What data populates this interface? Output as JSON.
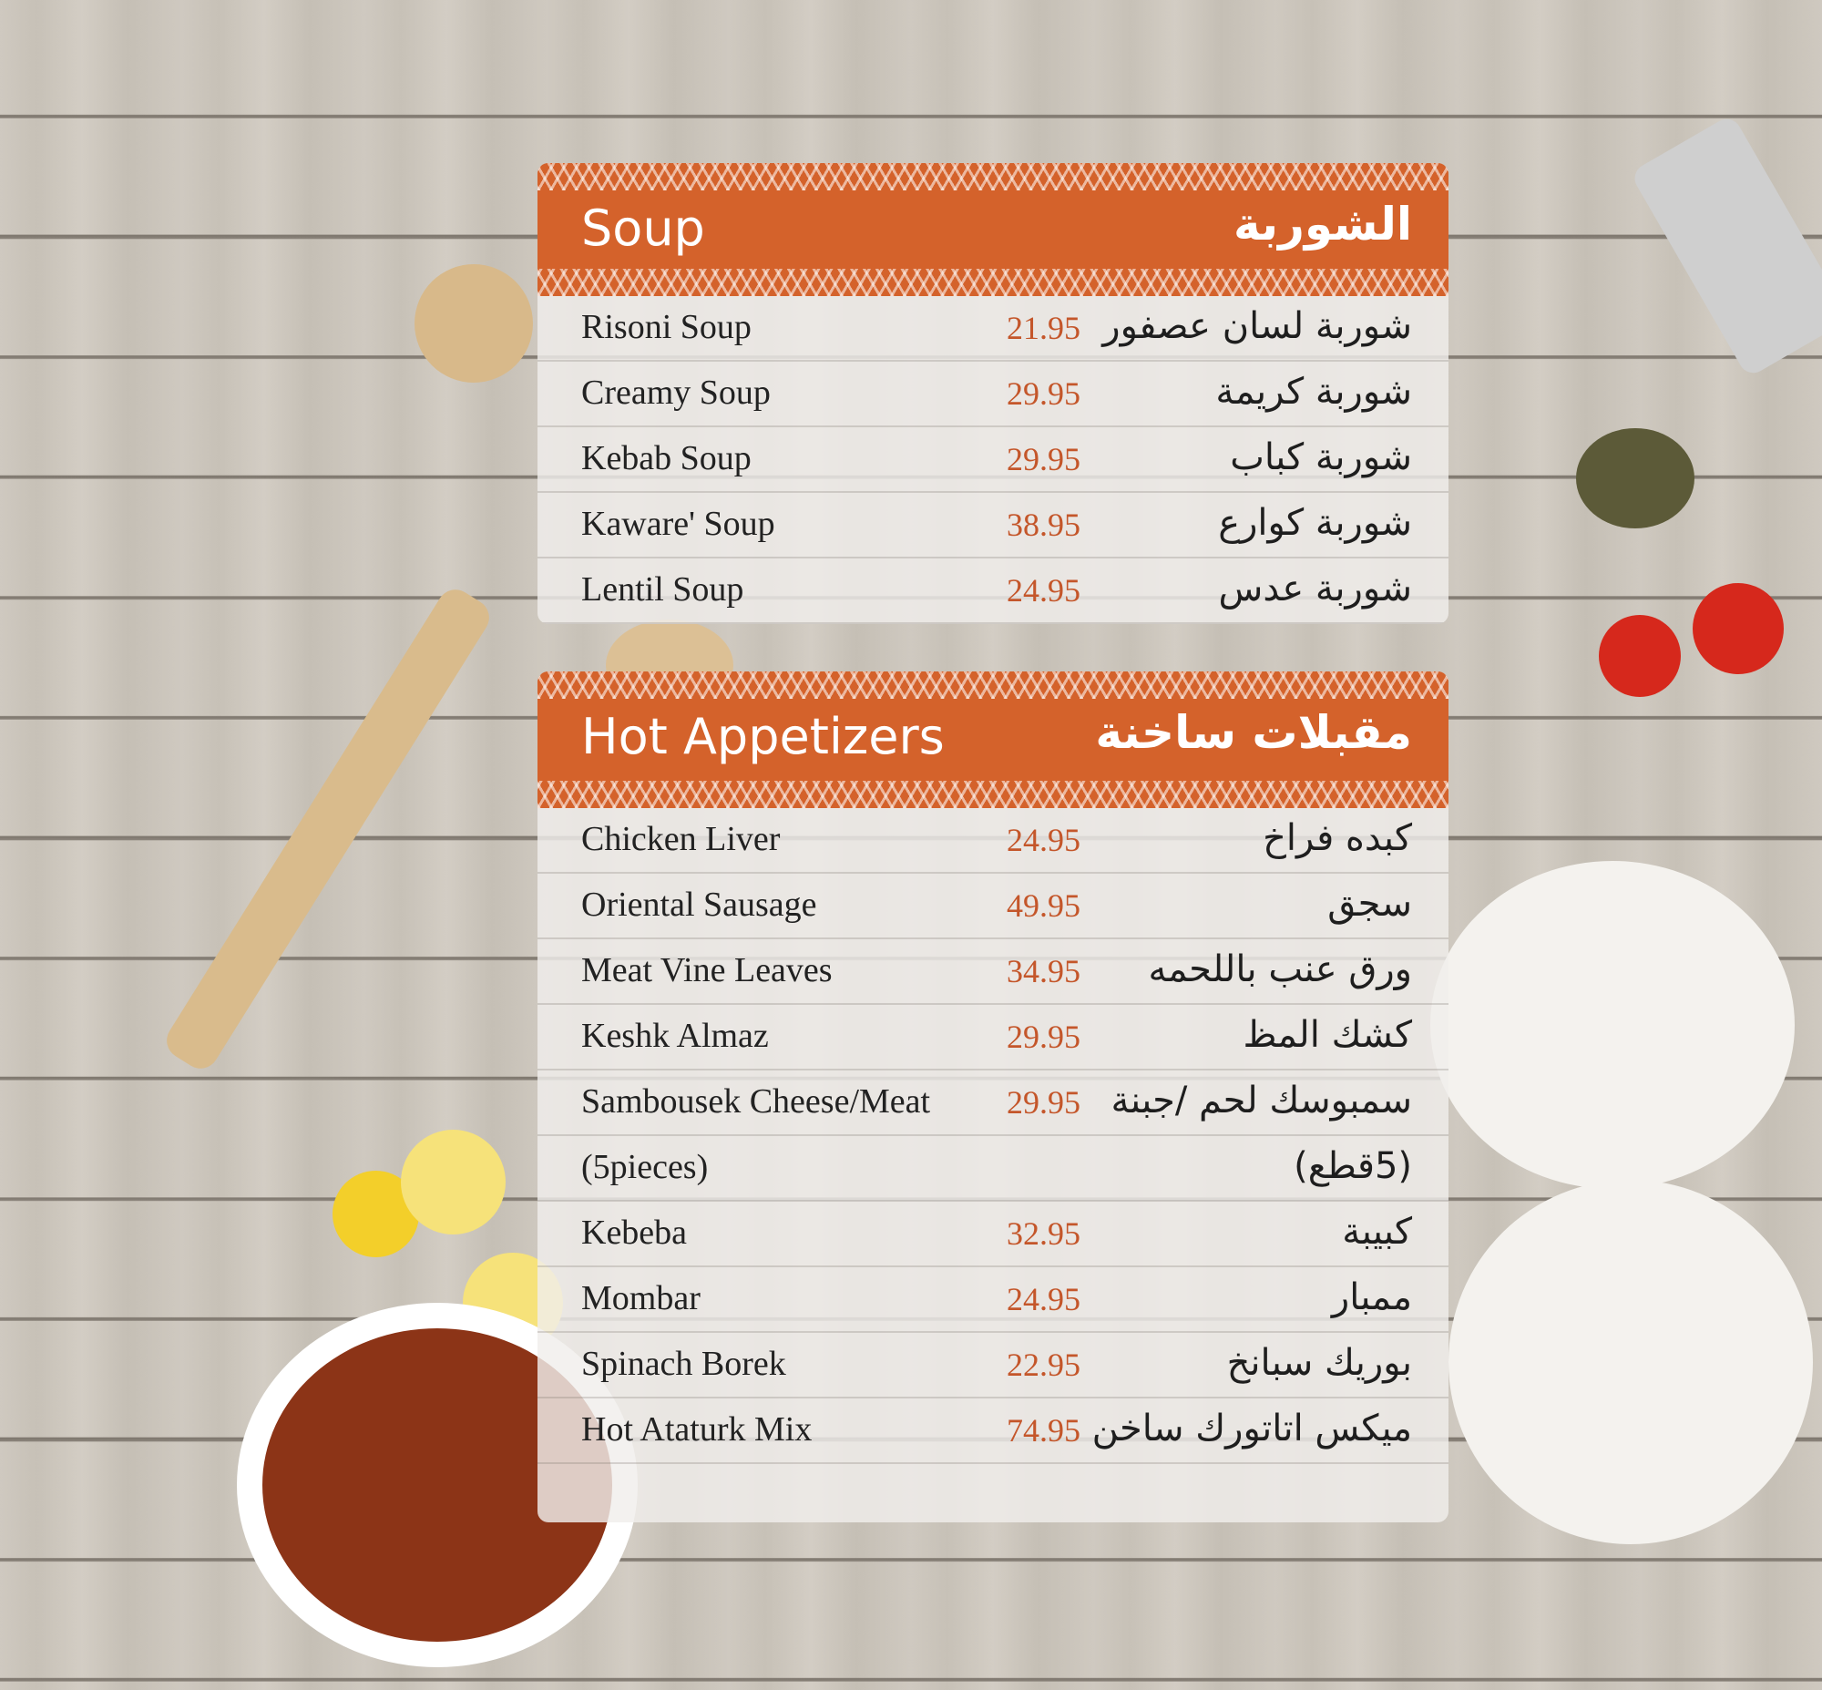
{
  "sections": [
    {
      "title_en": "Soup",
      "title_ar": "الشوربة",
      "items": [
        {
          "name": "Risoni Soup",
          "price": "21.95",
          "name_ar": "شوربة لسان عصفور"
        },
        {
          "name": "Creamy Soup",
          "price": "29.95",
          "name_ar": "شوربة كريمة"
        },
        {
          "name": "Kebab Soup",
          "price": "29.95",
          "name_ar": "شوربة كباب"
        },
        {
          "name": "Kaware' Soup",
          "price": "38.95",
          "name_ar": "شوربة كوارع"
        },
        {
          "name": "Lentil Soup",
          "price": "24.95",
          "name_ar": "شوربة عدس"
        }
      ]
    },
    {
      "title_en": "Hot Appetizers",
      "title_ar": "مقبلات ساخنة",
      "items": [
        {
          "name": "Chicken Liver",
          "price": "24.95",
          "name_ar": "كبده فراخ"
        },
        {
          "name": "Oriental Sausage",
          "price": "49.95",
          "name_ar": "سجق"
        },
        {
          "name": "Meat Vine Leaves",
          "price": "34.95",
          "name_ar": "ورق عنب باللحمه"
        },
        {
          "name": "Keshk Almaz",
          "price": "29.95",
          "name_ar": "كشك المظ"
        },
        {
          "name": "Sambousek Cheese/Meat",
          "price": "29.95",
          "name_ar": "سمبوسك لحم /جبنة"
        },
        {
          "name": "(5pieces)",
          "price": "",
          "name_ar": "(5قطع)"
        },
        {
          "name": "Kebeba",
          "price": "32.95",
          "name_ar": "كبيبة"
        },
        {
          "name": "Mombar",
          "price": "24.95",
          "name_ar": "ممبار"
        },
        {
          "name": "Spinach Borek",
          "price": "22.95",
          "name_ar": "بوريك سبانخ"
        },
        {
          "name": "Hot Ataturk Mix",
          "price": "74.95",
          "name_ar": "ميكس اتاتورك ساخن"
        }
      ]
    }
  ],
  "colors": {
    "accent": "#d4622b",
    "price": "#c4562a"
  }
}
